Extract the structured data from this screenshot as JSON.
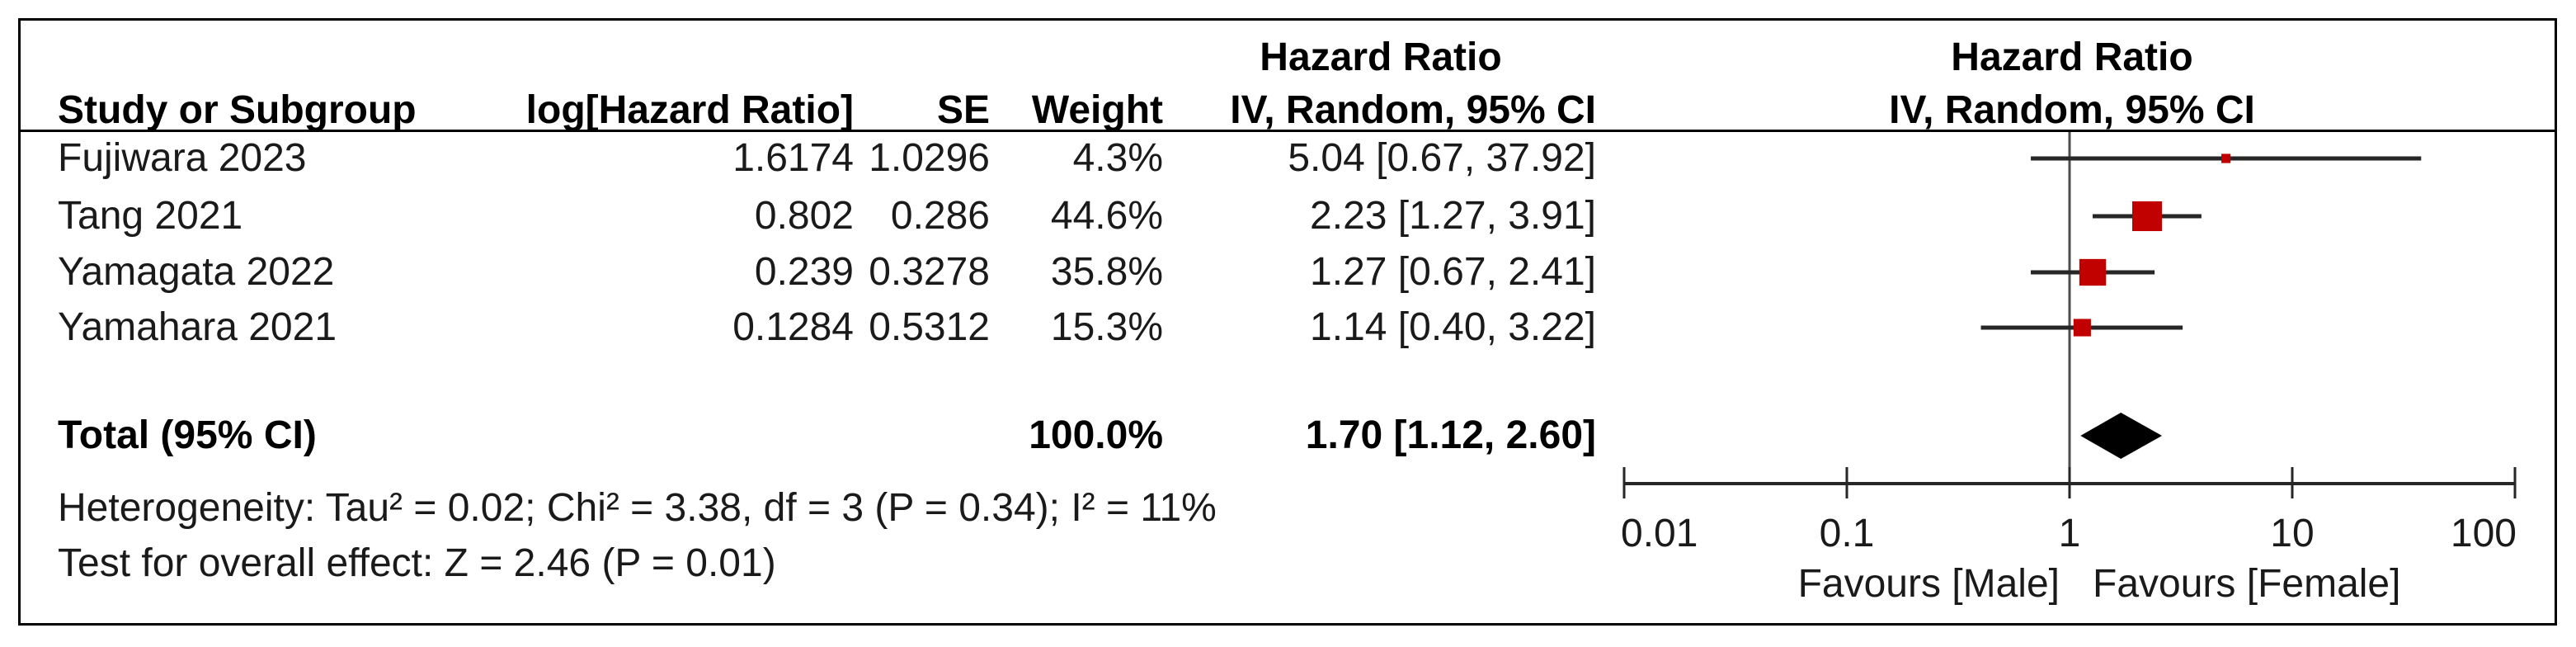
{
  "header": {
    "effect_label": "Hazard Ratio",
    "study_col": "Study or Subgroup",
    "log_hr_col": "log[Hazard Ratio]",
    "se_col": "SE",
    "weight_col": "Weight",
    "ci_method_label": "IV, Random, 95% CI"
  },
  "studies": [
    {
      "name": "Fujiwara 2023",
      "log_hr": "1.6174",
      "se": "1.0296",
      "weight": "4.3%",
      "ci_text": "5.04 [0.67, 37.92]",
      "hr": 5.04,
      "ci_lo": 0.67,
      "ci_hi": 37.92,
      "weight_pct": 4.3
    },
    {
      "name": "Tang 2021",
      "log_hr": "0.802",
      "se": "0.286",
      "weight": "44.6%",
      "ci_text": "2.23 [1.27, 3.91]",
      "hr": 2.23,
      "ci_lo": 1.27,
      "ci_hi": 3.91,
      "weight_pct": 44.6
    },
    {
      "name": "Yamagata 2022",
      "log_hr": "0.239",
      "se": "0.3278",
      "weight": "35.8%",
      "ci_text": "1.27 [0.67, 2.41]",
      "hr": 1.27,
      "ci_lo": 0.67,
      "ci_hi": 2.41,
      "weight_pct": 35.8
    },
    {
      "name": "Yamahara 2021",
      "log_hr": "0.1284",
      "se": "0.5312",
      "weight": "15.3%",
      "ci_text": "1.14 [0.40, 3.22]",
      "hr": 1.14,
      "ci_lo": 0.4,
      "ci_hi": 3.22,
      "weight_pct": 15.3
    }
  ],
  "total": {
    "label": "Total (95% CI)",
    "weight": "100.0%",
    "ci_text": "1.70 [1.12, 2.60]",
    "hr": 1.7,
    "ci_lo": 1.12,
    "ci_hi": 2.6
  },
  "footer": {
    "heterogeneity": "Heterogeneity: Tau² = 0.02; Chi² = 3.38, df = 3 (P = 0.34); I² = 11%",
    "overall_effect": "Test for overall effect: Z = 2.46 (P = 0.01)"
  },
  "axis": {
    "tick_values": [
      0.01,
      0.1,
      1,
      10,
      100
    ],
    "tick_labels": [
      "0.01",
      "0.1",
      "1",
      "10",
      "100"
    ],
    "favours_left": "Favours [Male]",
    "favours_right": "Favours [Female]"
  },
  "colors": {
    "marker_red": "#c10000",
    "diamond_black": "#000000",
    "ci_line": "#262626",
    "no_effect_line": "#4d4d4d",
    "text": "#1a1a1a"
  },
  "chart_data": {
    "type": "scatter",
    "subtype": "forest-plot-meta-analysis",
    "title": "Hazard Ratio",
    "method": "IV, Random, 95% CI",
    "x_scale": "log10",
    "xlim": [
      0.01,
      100
    ],
    "x_ticks": [
      0.01,
      0.1,
      1,
      10,
      100
    ],
    "no_effect_line_at": 1,
    "xlabel_left_of_1": "Favours [Male]",
    "xlabel_right_of_1": "Favours [Female]",
    "series": [
      {
        "name": "Fujiwara 2023",
        "log_hr": 1.6174,
        "se": 1.0296,
        "weight_pct": 4.3,
        "hr": 5.04,
        "ci95": [
          0.67,
          37.92
        ]
      },
      {
        "name": "Tang 2021",
        "log_hr": 0.802,
        "se": 0.286,
        "weight_pct": 44.6,
        "hr": 2.23,
        "ci95": [
          1.27,
          3.91
        ]
      },
      {
        "name": "Yamagata 2022",
        "log_hr": 0.239,
        "se": 0.3278,
        "weight_pct": 35.8,
        "hr": 1.27,
        "ci95": [
          0.67,
          2.41
        ]
      },
      {
        "name": "Yamahara 2021",
        "log_hr": 0.1284,
        "se": 0.5312,
        "weight_pct": 15.3,
        "hr": 1.14,
        "ci95": [
          0.4,
          3.22
        ]
      }
    ],
    "pooled": {
      "name": "Total (95% CI)",
      "weight_pct": 100.0,
      "hr": 1.7,
      "ci95": [
        1.12,
        2.6
      ],
      "marker": "diamond"
    },
    "heterogeneity": {
      "tau2": 0.02,
      "chi2": 3.38,
      "df": 3,
      "p": 0.34,
      "i2_pct": 11
    },
    "overall_effect": {
      "z": 2.46,
      "p": 0.01
    }
  }
}
